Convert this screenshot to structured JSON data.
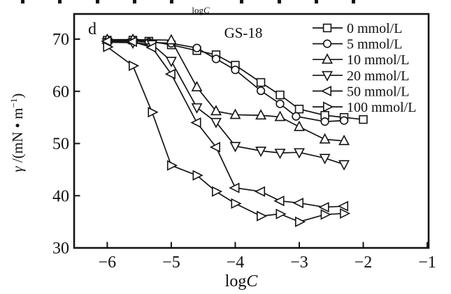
{
  "figure": {
    "panel_label": "d",
    "title": "GS-18",
    "top_cropped_label": {
      "roman": "log",
      "italic": "C"
    },
    "ink_color": "#141414",
    "background_color": "#ffffff"
  },
  "chart_data": {
    "type": "line",
    "title": "GS-18",
    "panel_label": "d",
    "xlabel_parts": {
      "roman": "log",
      "italic": "C"
    },
    "ylabel_parts": {
      "gamma": "γ",
      "pre": " /(mN • m",
      "sup": "−1",
      "post": ")"
    },
    "xlim": [
      -6.52,
      -1.0
    ],
    "ylim": [
      30,
      74.8
    ],
    "xticks": [
      -6,
      -5,
      -4,
      -3,
      -2,
      -1
    ],
    "yticks": [
      30,
      40,
      50,
      60,
      70
    ],
    "grid": false,
    "legend_position": "top-right-inside",
    "legend_units": "mmol/L",
    "series": [
      {
        "name": "0 mmol/L",
        "marker": "square",
        "points": [
          [
            -6,
            69.8
          ],
          [
            -5.6,
            69.8
          ],
          [
            -5.35,
            69.6
          ],
          [
            -5.0,
            68.9
          ],
          [
            -4.6,
            67.8
          ],
          [
            -4.3,
            67.0
          ],
          [
            -4.0,
            65.0
          ],
          [
            -3.6,
            61.7
          ],
          [
            -3.3,
            59.3
          ],
          [
            -3.0,
            56.6
          ],
          [
            -2.6,
            55.4
          ],
          [
            -2.3,
            55.0
          ],
          [
            -2.0,
            54.6
          ]
        ]
      },
      {
        "name": "5 mmol/L",
        "marker": "circle",
        "points": [
          [
            -6,
            69.6
          ],
          [
            -5.6,
            69.6
          ],
          [
            -5.35,
            69.4
          ],
          [
            -5.0,
            69.2
          ],
          [
            -4.6,
            68.3
          ],
          [
            -4.3,
            66.2
          ],
          [
            -4.0,
            64.1
          ],
          [
            -3.6,
            60.1
          ],
          [
            -3.3,
            57.6
          ],
          [
            -3.05,
            55.2
          ],
          [
            -2.6,
            54.2
          ],
          [
            -2.3,
            54.4
          ]
        ]
      },
      {
        "name": "10 mmol/L",
        "marker": "triangle-up",
        "points": [
          [
            -6,
            69.9
          ],
          [
            -5.6,
            69.9
          ],
          [
            -5.0,
            69.8
          ],
          [
            -4.6,
            60.8
          ],
          [
            -4.3,
            56.2
          ],
          [
            -4.0,
            55.5
          ],
          [
            -3.6,
            55.4
          ],
          [
            -3.3,
            55.1
          ],
          [
            -3.0,
            53.2
          ],
          [
            -2.6,
            50.8
          ],
          [
            -2.3,
            50.5
          ]
        ]
      },
      {
        "name": "20 mmol/L",
        "marker": "triangle-down",
        "points": [
          [
            -6,
            69.4
          ],
          [
            -5.6,
            69.3
          ],
          [
            -5.3,
            69.0
          ],
          [
            -5.0,
            65.8
          ],
          [
            -4.6,
            56.9
          ],
          [
            -4.3,
            54.1
          ],
          [
            -4.0,
            49.5
          ],
          [
            -3.6,
            48.6
          ],
          [
            -3.3,
            48.2
          ],
          [
            -3.0,
            48.3
          ],
          [
            -2.6,
            47.2
          ],
          [
            -2.3,
            46.0
          ]
        ]
      },
      {
        "name": "50 mmol/L",
        "marker": "triangle-left",
        "points": [
          [
            -6,
            69.6
          ],
          [
            -5.6,
            69.5
          ],
          [
            -5.3,
            68.4
          ],
          [
            -5.0,
            63.3
          ],
          [
            -4.6,
            54.0
          ],
          [
            -4.3,
            49.3
          ],
          [
            -4.0,
            41.5
          ],
          [
            -3.6,
            40.8
          ],
          [
            -3.3,
            39.0
          ],
          [
            -3.0,
            38.6
          ],
          [
            -2.6,
            37.8
          ],
          [
            -2.3,
            38.0
          ]
        ]
      },
      {
        "name": "100 mmol/L",
        "marker": "triangle-right",
        "points": [
          [
            -6,
            68.5
          ],
          [
            -5.6,
            64.9
          ],
          [
            -5.3,
            56.0
          ],
          [
            -5.0,
            45.8
          ],
          [
            -4.6,
            43.9
          ],
          [
            -4.3,
            40.8
          ],
          [
            -4.0,
            38.5
          ],
          [
            -3.6,
            36.1
          ],
          [
            -3.3,
            36.5
          ],
          [
            -3.0,
            35.0
          ],
          [
            -2.6,
            36.4
          ],
          [
            -2.3,
            36.6
          ]
        ]
      }
    ],
    "top_crop_artifact_xs": [
      30,
      83,
      137,
      190,
      243,
      343,
      397,
      450,
      503
    ]
  }
}
